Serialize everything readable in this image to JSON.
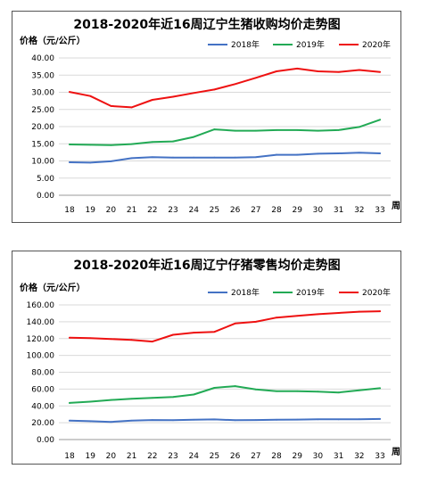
{
  "colors": {
    "s2018": "#4472c4",
    "s2019": "#22aa55",
    "s2020": "#ee1111",
    "grid": "#d9d9d9"
  },
  "chart_data": [
    {
      "type": "line",
      "title": "2018-2020年近16周辽宁生猪收购均价走势图",
      "ylabel": "价格（元/公斤）",
      "xlabel": "周",
      "ylim": [
        0,
        40
      ],
      "yticks": [
        "0.00",
        "5.00",
        "10.00",
        "15.00",
        "20.00",
        "25.00",
        "30.00",
        "35.00",
        "40.00"
      ],
      "ytick_values": [
        0,
        5,
        10,
        15,
        20,
        25,
        30,
        35,
        40
      ],
      "x": [
        "18",
        "19",
        "20",
        "21",
        "22",
        "23",
        "24",
        "25",
        "26",
        "27",
        "28",
        "29",
        "30",
        "31",
        "32",
        "33"
      ],
      "grid": true,
      "legend_position": "top",
      "series": [
        {
          "name": "2018年",
          "color_key": "s2018",
          "values": [
            9.6,
            9.5,
            9.9,
            10.8,
            11.1,
            11.0,
            11.0,
            11.0,
            11.0,
            11.1,
            11.8,
            11.8,
            12.1,
            12.2,
            12.4,
            12.2
          ]
        },
        {
          "name": "2019年",
          "color_key": "s2019",
          "values": [
            14.8,
            14.7,
            14.6,
            14.9,
            15.5,
            15.7,
            17.0,
            19.2,
            18.8,
            18.8,
            19.0,
            19.0,
            18.8,
            19.0,
            19.9,
            22.0
          ]
        },
        {
          "name": "2020年",
          "color_key": "s2020",
          "values": [
            30.1,
            28.9,
            26.0,
            25.6,
            27.8,
            28.7,
            29.8,
            30.8,
            32.4,
            34.2,
            36.1,
            36.9,
            36.1,
            35.9,
            36.5,
            35.9
          ]
        }
      ]
    },
    {
      "type": "line",
      "title": "2018-2020年近16周辽宁仔猪零售均价走势图",
      "ylabel": "价格（元/公斤）",
      "xlabel": "周",
      "ylim": [
        0,
        160
      ],
      "yticks": [
        "0.00",
        "20.00",
        "40.00",
        "60.00",
        "80.00",
        "100.00",
        "120.00",
        "140.00",
        "160.00"
      ],
      "ytick_values": [
        0,
        20,
        40,
        60,
        80,
        100,
        120,
        140,
        160
      ],
      "x": [
        "18",
        "19",
        "20",
        "21",
        "22",
        "23",
        "24",
        "25",
        "26",
        "27",
        "28",
        "29",
        "30",
        "31",
        "32",
        "33"
      ],
      "grid": true,
      "legend_position": "top",
      "series": [
        {
          "name": "2018年",
          "color_key": "s2018",
          "values": [
            22.5,
            21.8,
            21.0,
            22.5,
            23.2,
            23.0,
            23.6,
            23.9,
            23.0,
            23.2,
            23.5,
            23.7,
            24.0,
            24.0,
            24.2,
            24.5
          ]
        },
        {
          "name": "2019年",
          "color_key": "s2019",
          "values": [
            43.5,
            45.0,
            47.0,
            48.5,
            49.5,
            50.5,
            53.5,
            61.5,
            63.5,
            59.5,
            57.5,
            57.5,
            57.0,
            56.0,
            58.5,
            61.0
          ]
        },
        {
          "name": "2020年",
          "color_key": "s2020",
          "values": [
            121.0,
            120.5,
            119.5,
            118.5,
            116.5,
            124.5,
            127.0,
            128.0,
            138.0,
            140.0,
            145.0,
            147.0,
            149.0,
            150.5,
            152.0,
            152.5
          ]
        }
      ]
    }
  ]
}
